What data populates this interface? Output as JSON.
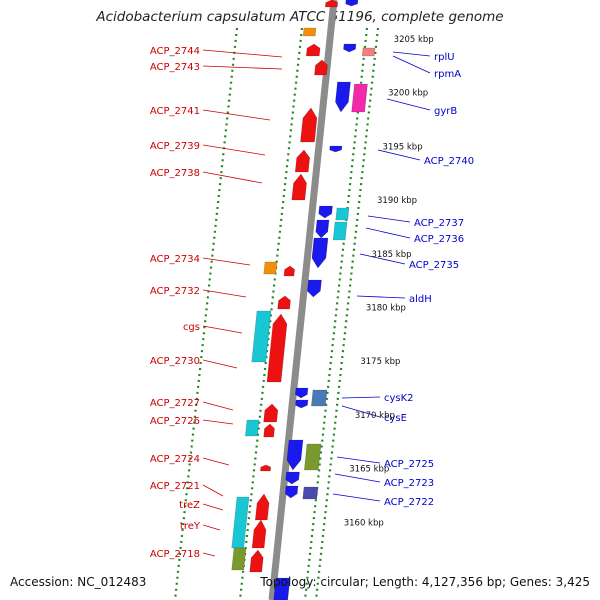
{
  "title": "Acidobacterium capsulatum ATCC 51196, complete genome",
  "accession_text": "Accession: NC_012483",
  "summary_text": "Topology: circular; Length: 4,127,356 bp; Genes: 3,425",
  "colors": {
    "reverse_label": "#cc0000",
    "forward_label": "#0000cc",
    "red_gene": "#ee1111",
    "blue_gene": "#1a1aee",
    "cyan_gene": "#19c6d4",
    "olive_gene": "#7a9a30",
    "purple_gene": "#4a4ab0",
    "steel_gene": "#4a7ab8",
    "orange_gene": "#f0900a",
    "pink_gene": "#f02aa8",
    "salmon_gene": "#f08080",
    "axis": "#888888",
    "dots": "#228822"
  },
  "scale_labels": [
    "3205 kbp",
    "3200 kbp",
    "3195 kbp",
    "3190 kbp",
    "3185 kbp",
    "3180 kbp",
    "3175 kbp",
    "3170 kbp",
    "3165 kbp",
    "3160 kbp"
  ],
  "reverse_genes": [
    "ACP_2744",
    "ACP_2743",
    "ACP_2741",
    "ACP_2739",
    "ACP_2738",
    "ACP_2734",
    "ACP_2732",
    "cgs",
    "ACP_2730",
    "ACP_2727",
    "ACP_2726",
    "ACP_2724",
    "ACP_2721",
    "treZ",
    "treY",
    "ACP_2718"
  ],
  "forward_genes": [
    "rplU",
    "rpmA",
    "gyrB",
    "ACP_2740",
    "ACP_2737",
    "ACP_2736",
    "ACP_2735",
    "aldH",
    "cysK2",
    "cysE",
    "ACP_2725",
    "ACP_2723",
    "ACP_2722"
  ]
}
